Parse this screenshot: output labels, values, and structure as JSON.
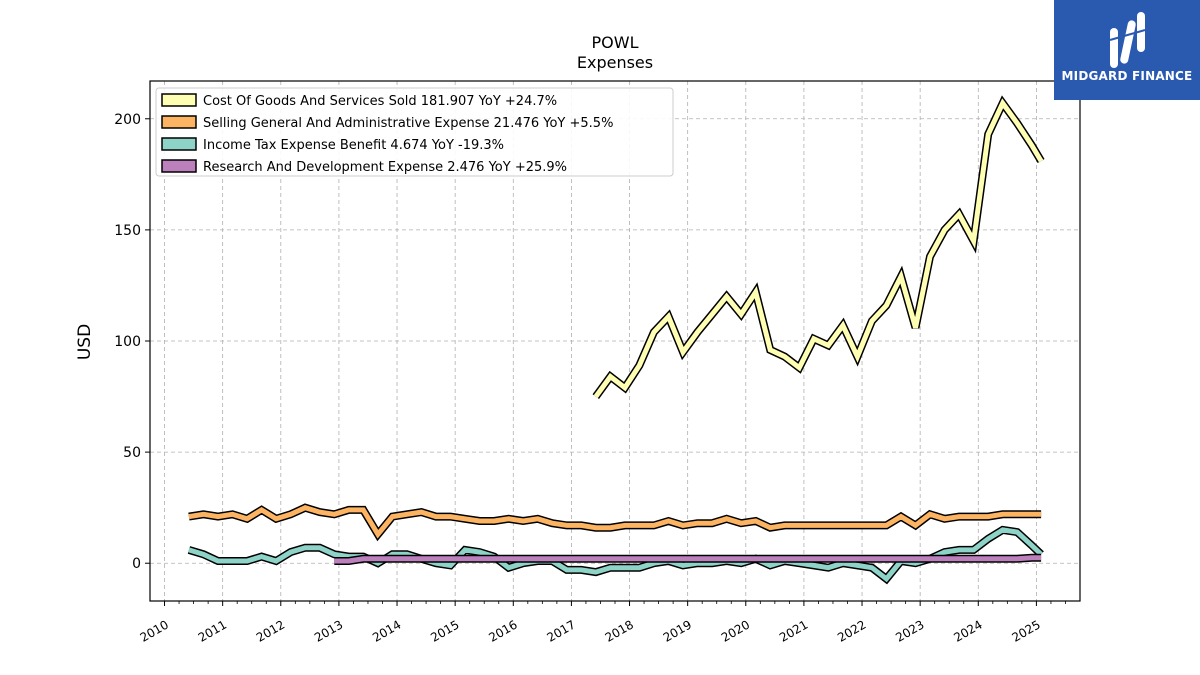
{
  "chart_data": {
    "type": "line",
    "title": "POWL",
    "subtitle": "Expenses",
    "ylabel": "USD",
    "xlabel": "",
    "xlim": [
      2009.75,
      2025.75
    ],
    "ylim": [
      -17,
      217
    ],
    "yticks": [
      0,
      50,
      100,
      150,
      200
    ],
    "xticks": [
      "2010",
      "2011",
      "2012",
      "2013",
      "2014",
      "2015",
      "2016",
      "2017",
      "2018",
      "2019",
      "2020",
      "2021",
      "2022",
      "2023",
      "2024",
      "2025"
    ],
    "grid": true,
    "legend_position": "top-left",
    "series": [
      {
        "name": "Cost Of Goods And Services Sold",
        "legend": "Cost Of Goods And Services Sold  181.907 YoY +24.7%",
        "color": "#ffffb3",
        "x": [
          2017.42,
          2017.67,
          2017.92,
          2018.17,
          2018.42,
          2018.67,
          2018.92,
          2019.17,
          2019.42,
          2019.67,
          2019.92,
          2020.17,
          2020.42,
          2020.67,
          2020.92,
          2021.17,
          2021.42,
          2021.67,
          2021.92,
          2022.17,
          2022.42,
          2022.67,
          2022.92,
          2023.17,
          2023.42,
          2023.67,
          2023.92,
          2024.17,
          2024.42,
          2024.67,
          2024.92,
          2025.08
        ],
        "y": [
          75,
          84,
          79,
          89,
          104,
          111,
          95,
          104,
          112,
          120,
          112,
          122,
          96,
          93,
          88,
          101,
          98,
          107,
          93,
          109,
          116,
          129,
          106,
          138,
          150,
          157,
          145,
          193,
          207,
          198,
          188,
          181
        ]
      },
      {
        "name": "Selling General And Administrative Expense",
        "legend": "Selling General And Administrative Expense  21.476 YoY +5.5%",
        "color": "#fdb462",
        "x": [
          2010.42,
          2010.67,
          2010.92,
          2011.17,
          2011.42,
          2011.67,
          2011.92,
          2012.17,
          2012.42,
          2012.67,
          2012.92,
          2013.17,
          2013.42,
          2013.67,
          2013.92,
          2014.17,
          2014.42,
          2014.67,
          2014.92,
          2015.17,
          2015.42,
          2015.67,
          2015.92,
          2016.17,
          2016.42,
          2016.67,
          2016.92,
          2017.17,
          2017.42,
          2017.67,
          2017.92,
          2018.17,
          2018.42,
          2018.67,
          2018.92,
          2019.17,
          2019.42,
          2019.67,
          2019.92,
          2020.17,
          2020.42,
          2020.67,
          2020.92,
          2021.17,
          2021.42,
          2021.67,
          2021.92,
          2022.17,
          2022.42,
          2022.67,
          2022.92,
          2023.17,
          2023.42,
          2023.67,
          2023.92,
          2024.17,
          2024.42,
          2024.67,
          2024.92,
          2025.08
        ],
        "y": [
          21,
          22,
          21,
          22,
          20,
          24,
          20,
          22,
          25,
          23,
          22,
          24,
          24,
          13,
          21,
          22,
          23,
          21,
          21,
          20,
          19,
          19,
          20,
          19,
          20,
          18,
          17,
          17,
          16,
          16,
          17,
          17,
          17,
          19,
          17,
          18,
          18,
          20,
          18,
          19,
          16,
          17,
          17,
          17,
          17,
          17,
          17,
          17,
          17,
          21,
          17,
          22,
          20,
          21,
          21,
          21,
          22,
          22,
          22,
          22
        ]
      },
      {
        "name": "Income Tax Expense Benefit",
        "legend": "Income Tax Expense Benefit  4.674 YoY -19.3%",
        "color": "#8dd3c7",
        "x": [
          2010.42,
          2010.67,
          2010.92,
          2011.17,
          2011.42,
          2011.67,
          2011.92,
          2012.17,
          2012.42,
          2012.67,
          2012.92,
          2013.17,
          2013.42,
          2013.67,
          2013.92,
          2014.17,
          2014.42,
          2014.67,
          2014.92,
          2015.17,
          2015.42,
          2015.67,
          2015.92,
          2016.17,
          2016.42,
          2016.67,
          2016.92,
          2017.17,
          2017.42,
          2017.67,
          2017.92,
          2018.17,
          2018.42,
          2018.67,
          2018.92,
          2019.17,
          2019.42,
          2019.67,
          2019.92,
          2020.17,
          2020.42,
          2020.67,
          2020.92,
          2021.17,
          2021.42,
          2021.67,
          2021.92,
          2022.17,
          2022.42,
          2022.67,
          2022.92,
          2023.17,
          2023.42,
          2023.67,
          2023.92,
          2024.17,
          2024.42,
          2024.67,
          2024.92,
          2025.08
        ],
        "y": [
          6,
          4,
          1,
          1,
          1,
          3,
          1,
          5,
          7,
          7,
          4,
          3,
          3,
          0,
          4,
          4,
          2,
          0,
          -1,
          6,
          5,
          3,
          -2,
          0,
          1,
          1,
          -3,
          -3,
          -4,
          -2,
          -2,
          -2,
          0,
          1,
          -1,
          0,
          0,
          1,
          0,
          2,
          -1,
          1,
          0,
          -1,
          -2,
          0,
          -1,
          -2,
          -7,
          1,
          0,
          2,
          5,
          6,
          6,
          11,
          15,
          14,
          8,
          4
        ]
      },
      {
        "name": "Research And Development Expense",
        "legend": "Research And Development Expense  2.476 YoY +25.9%",
        "color": "#bc80bd",
        "x": [
          2012.92,
          2013.17,
          2013.42,
          2013.67,
          2013.92,
          2014.17,
          2014.42,
          2014.67,
          2014.92,
          2015.17,
          2015.42,
          2015.67,
          2015.92,
          2016.17,
          2016.42,
          2016.67,
          2016.92,
          2017.17,
          2017.42,
          2017.67,
          2017.92,
          2018.17,
          2018.42,
          2018.67,
          2018.92,
          2019.17,
          2019.42,
          2019.67,
          2019.92,
          2020.17,
          2020.42,
          2020.67,
          2020.92,
          2021.17,
          2021.42,
          2021.67,
          2021.92,
          2022.17,
          2022.42,
          2022.67,
          2022.92,
          2023.17,
          2023.42,
          2023.67,
          2023.92,
          2024.17,
          2024.42,
          2024.67,
          2024.92,
          2025.08
        ],
        "y": [
          1,
          1,
          2,
          2,
          2,
          2,
          2,
          2,
          2,
          2,
          2,
          2,
          2,
          2,
          2,
          2,
          2,
          2,
          2,
          2,
          2,
          2,
          2,
          2,
          2,
          2,
          2,
          2,
          2,
          2,
          2,
          2,
          2,
          2,
          2,
          2,
          2,
          2,
          2,
          2,
          2,
          2,
          2,
          2,
          2,
          2,
          2,
          2,
          2.5,
          2.5
        ]
      }
    ]
  },
  "brand": {
    "name": "MIDGARD FINANCE",
    "bg_color": "#2a5ab0"
  }
}
